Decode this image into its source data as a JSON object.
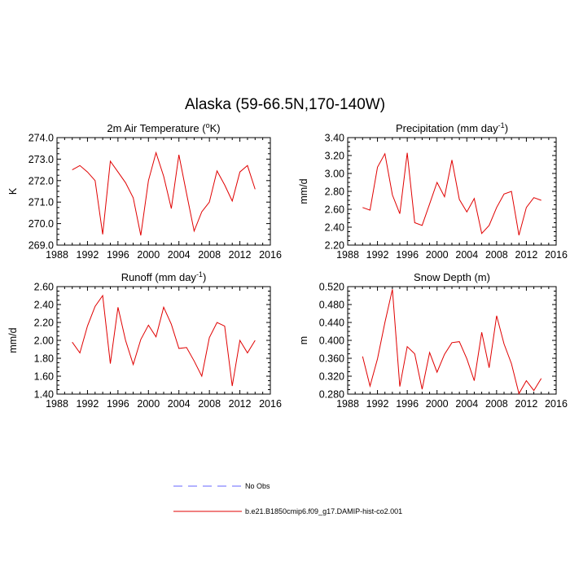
{
  "title": "Alaska (59-66.5N,170-140W)",
  "chart_data": [
    {
      "type": "line",
      "title": "2m Air Temperature (°K)",
      "title_parts": {
        "main": "2m Air Temperature (",
        "sup": "o",
        "end": "K)"
      },
      "ylabel": "K",
      "xlabel": "",
      "xlim": [
        1988,
        2016
      ],
      "ylim": [
        269.0,
        274.0
      ],
      "xticks": [
        "1988",
        "1992",
        "1996",
        "2000",
        "2004",
        "2008",
        "2012",
        "2016"
      ],
      "yticks": [
        "269.0",
        "270.0",
        "271.0",
        "272.0",
        "273.0",
        "274.0"
      ],
      "grid": false,
      "series": [
        {
          "color": "#e00000",
          "x": [
            1990,
            1991,
            1992,
            1993,
            1994,
            1995,
            1996,
            1997,
            1998,
            1999,
            2000,
            2001,
            2002,
            2003,
            2004,
            2005,
            2006,
            2007,
            2008,
            2009,
            2010,
            2011,
            2012,
            2013,
            2014
          ],
          "y": [
            272.5,
            272.7,
            272.4,
            272.0,
            269.5,
            272.9,
            272.4,
            271.9,
            271.2,
            269.45,
            272.0,
            273.3,
            272.2,
            270.7,
            273.2,
            271.4,
            269.65,
            270.55,
            271.0,
            272.45,
            271.8,
            271.05,
            272.4,
            272.7,
            271.6
          ]
        }
      ]
    },
    {
      "type": "line",
      "title": "Precipitation (mm day-1)",
      "title_parts": {
        "main": "Precipitation (mm day",
        "sup": "-1",
        "end": ")"
      },
      "ylabel": "mm/d",
      "xlabel": "",
      "xlim": [
        1988,
        2016
      ],
      "ylim": [
        2.2,
        3.4
      ],
      "xticks": [
        "1988",
        "1992",
        "1996",
        "2000",
        "2004",
        "2008",
        "2012",
        "2016"
      ],
      "yticks": [
        "2.20",
        "2.40",
        "2.60",
        "2.80",
        "3.00",
        "3.20",
        "3.40"
      ],
      "grid": false,
      "series": [
        {
          "color": "#e00000",
          "x": [
            1990,
            1991,
            1992,
            1993,
            1994,
            1995,
            1996,
            1997,
            1998,
            1999,
            2000,
            2001,
            2002,
            2003,
            2004,
            2005,
            2006,
            2007,
            2008,
            2009,
            2010,
            2011,
            2012,
            2013,
            2014
          ],
          "y": [
            2.62,
            2.59,
            3.07,
            3.22,
            2.76,
            2.55,
            3.23,
            2.45,
            2.42,
            2.66,
            2.9,
            2.74,
            3.15,
            2.71,
            2.57,
            2.72,
            2.33,
            2.42,
            2.62,
            2.77,
            2.8,
            2.31,
            2.62,
            2.73,
            2.7
          ]
        }
      ]
    },
    {
      "type": "line",
      "title": "Runoff (mm day-1)",
      "title_parts": {
        "main": "Runoff (mm day",
        "sup": "-1",
        "end": ")"
      },
      "ylabel": "mm/d",
      "xlabel": "",
      "xlim": [
        1988,
        2016
      ],
      "ylim": [
        1.4,
        2.6
      ],
      "xticks": [
        "1988",
        "1992",
        "1996",
        "2000",
        "2004",
        "2008",
        "2012",
        "2016"
      ],
      "yticks": [
        "1.40",
        "1.60",
        "1.80",
        "2.00",
        "2.20",
        "2.40",
        "2.60"
      ],
      "grid": false,
      "series": [
        {
          "color": "#e00000",
          "x": [
            1990,
            1991,
            1992,
            1993,
            1994,
            1995,
            1996,
            1997,
            1998,
            1999,
            2000,
            2001,
            2002,
            2003,
            2004,
            2005,
            2006,
            2007,
            2008,
            2009,
            2010,
            2011,
            2012,
            2013,
            2014
          ],
          "y": [
            1.98,
            1.86,
            2.16,
            2.38,
            2.5,
            1.74,
            2.37,
            2.0,
            1.73,
            2.01,
            2.17,
            2.04,
            2.37,
            2.18,
            1.91,
            1.92,
            1.77,
            1.6,
            2.03,
            2.2,
            2.16,
            1.49,
            2.0,
            1.86,
            2.0
          ]
        }
      ]
    },
    {
      "type": "line",
      "title": "Snow Depth (m)",
      "title_parts": {
        "main": "Snow Depth (m)",
        "sup": "",
        "end": ""
      },
      "ylabel": "m",
      "xlabel": "",
      "xlim": [
        1988,
        2016
      ],
      "ylim": [
        0.28,
        0.52
      ],
      "xticks": [
        "1988",
        "1992",
        "1996",
        "2000",
        "2004",
        "2008",
        "2012",
        "2016"
      ],
      "yticks": [
        "0.280",
        "0.320",
        "0.360",
        "0.400",
        "0.440",
        "0.480",
        "0.520"
      ],
      "grid": false,
      "series": [
        {
          "color": "#e00000",
          "x": [
            1990,
            1991,
            1992,
            1993,
            1994,
            1995,
            1996,
            1997,
            1998,
            1999,
            2000,
            2001,
            2002,
            2003,
            2004,
            2005,
            2006,
            2007,
            2008,
            2009,
            2010,
            2011,
            2012,
            2013,
            2014
          ],
          "y": [
            0.364,
            0.298,
            0.359,
            0.44,
            0.514,
            0.297,
            0.386,
            0.37,
            0.291,
            0.373,
            0.329,
            0.369,
            0.395,
            0.397,
            0.359,
            0.31,
            0.418,
            0.339,
            0.455,
            0.392,
            0.348,
            0.281,
            0.31,
            0.288,
            0.315
          ]
        }
      ]
    }
  ],
  "legend": [
    {
      "label": "No Obs",
      "color": "#6666ff",
      "dashed": true
    },
    {
      "label": "b.e21.B1850cmip6.f09_g17.DAMIP-hist-co2.001",
      "color": "#e00000",
      "dashed": false
    }
  ]
}
